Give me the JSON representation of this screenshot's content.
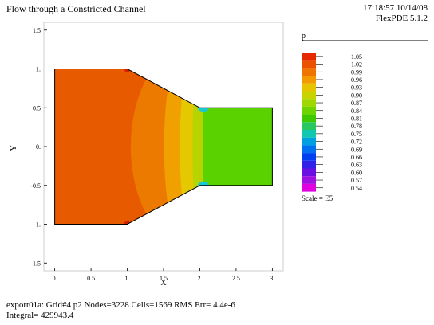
{
  "header": {
    "title": "Flow through a Constricted Channel",
    "timestamp": "17:18:57 10/14/08",
    "software": "FlexPDE 5.1.2"
  },
  "footer": {
    "line1": "export01a:  Grid#4  p2  Nodes=3228 Cells=1569 RMS Err= 4.4e-6",
    "line2": "Integral=  429943.4"
  },
  "chart_data": {
    "type": "heatmap",
    "title": "Flow through a Constricted Channel",
    "xlabel": "X",
    "ylabel": "Y",
    "xlim": [
      -0.15,
      3.15
    ],
    "ylim": [
      -1.6,
      1.6
    ],
    "xticks": [
      0,
      0.5,
      1,
      1.5,
      2,
      2.5,
      3
    ],
    "yticks": [
      1.5,
      1,
      0.5,
      0,
      -0.5,
      -1,
      -1.5
    ],
    "xtick_labels": [
      "0.",
      "0.5",
      "1.",
      "1.5",
      "2.",
      "2.5",
      "3."
    ],
    "ytick_labels": [
      "1.5",
      "1.",
      "0.5",
      "0.",
      "-0.5",
      "-1.",
      "-1.5"
    ],
    "legend": {
      "variable": "p",
      "placement": "right",
      "scale_note": "Scale = E5",
      "levels": [
        "1.05",
        "1.02",
        "0.99",
        "0.96",
        "0.93",
        "0.90",
        "0.87",
        "0.84",
        "0.81",
        "0.78",
        "0.75",
        "0.72",
        "0.69",
        "0.66",
        "0.63",
        "0.60",
        "0.57",
        "0.54"
      ],
      "colors": [
        "#e52a00",
        "#ea5200",
        "#f07400",
        "#f39a00",
        "#e6c400",
        "#c8d400",
        "#9ed800",
        "#6ed400",
        "#3ec800",
        "#28c860",
        "#10c8b0",
        "#00a0e0",
        "#0070f0",
        "#0040f0",
        "#3020e8",
        "#6a10e0",
        "#a010e0",
        "#e000e0"
      ]
    },
    "domain": {
      "inlet_x": [
        0,
        1
      ],
      "inlet_y": [
        -1,
        1
      ],
      "taper_x": [
        1,
        2
      ],
      "outlet_x": [
        2,
        3
      ],
      "outlet_y": [
        -0.5,
        0.5
      ]
    },
    "colors": {
      "inlet": "#e85a00",
      "band1": "#ec7a00",
      "band2": "#f0a000",
      "band3": "#e4c800",
      "band4": "#b8d400",
      "outlet": "#5ad200",
      "corner_high": "#d22000",
      "corner_low": "#18c8d0"
    }
  }
}
